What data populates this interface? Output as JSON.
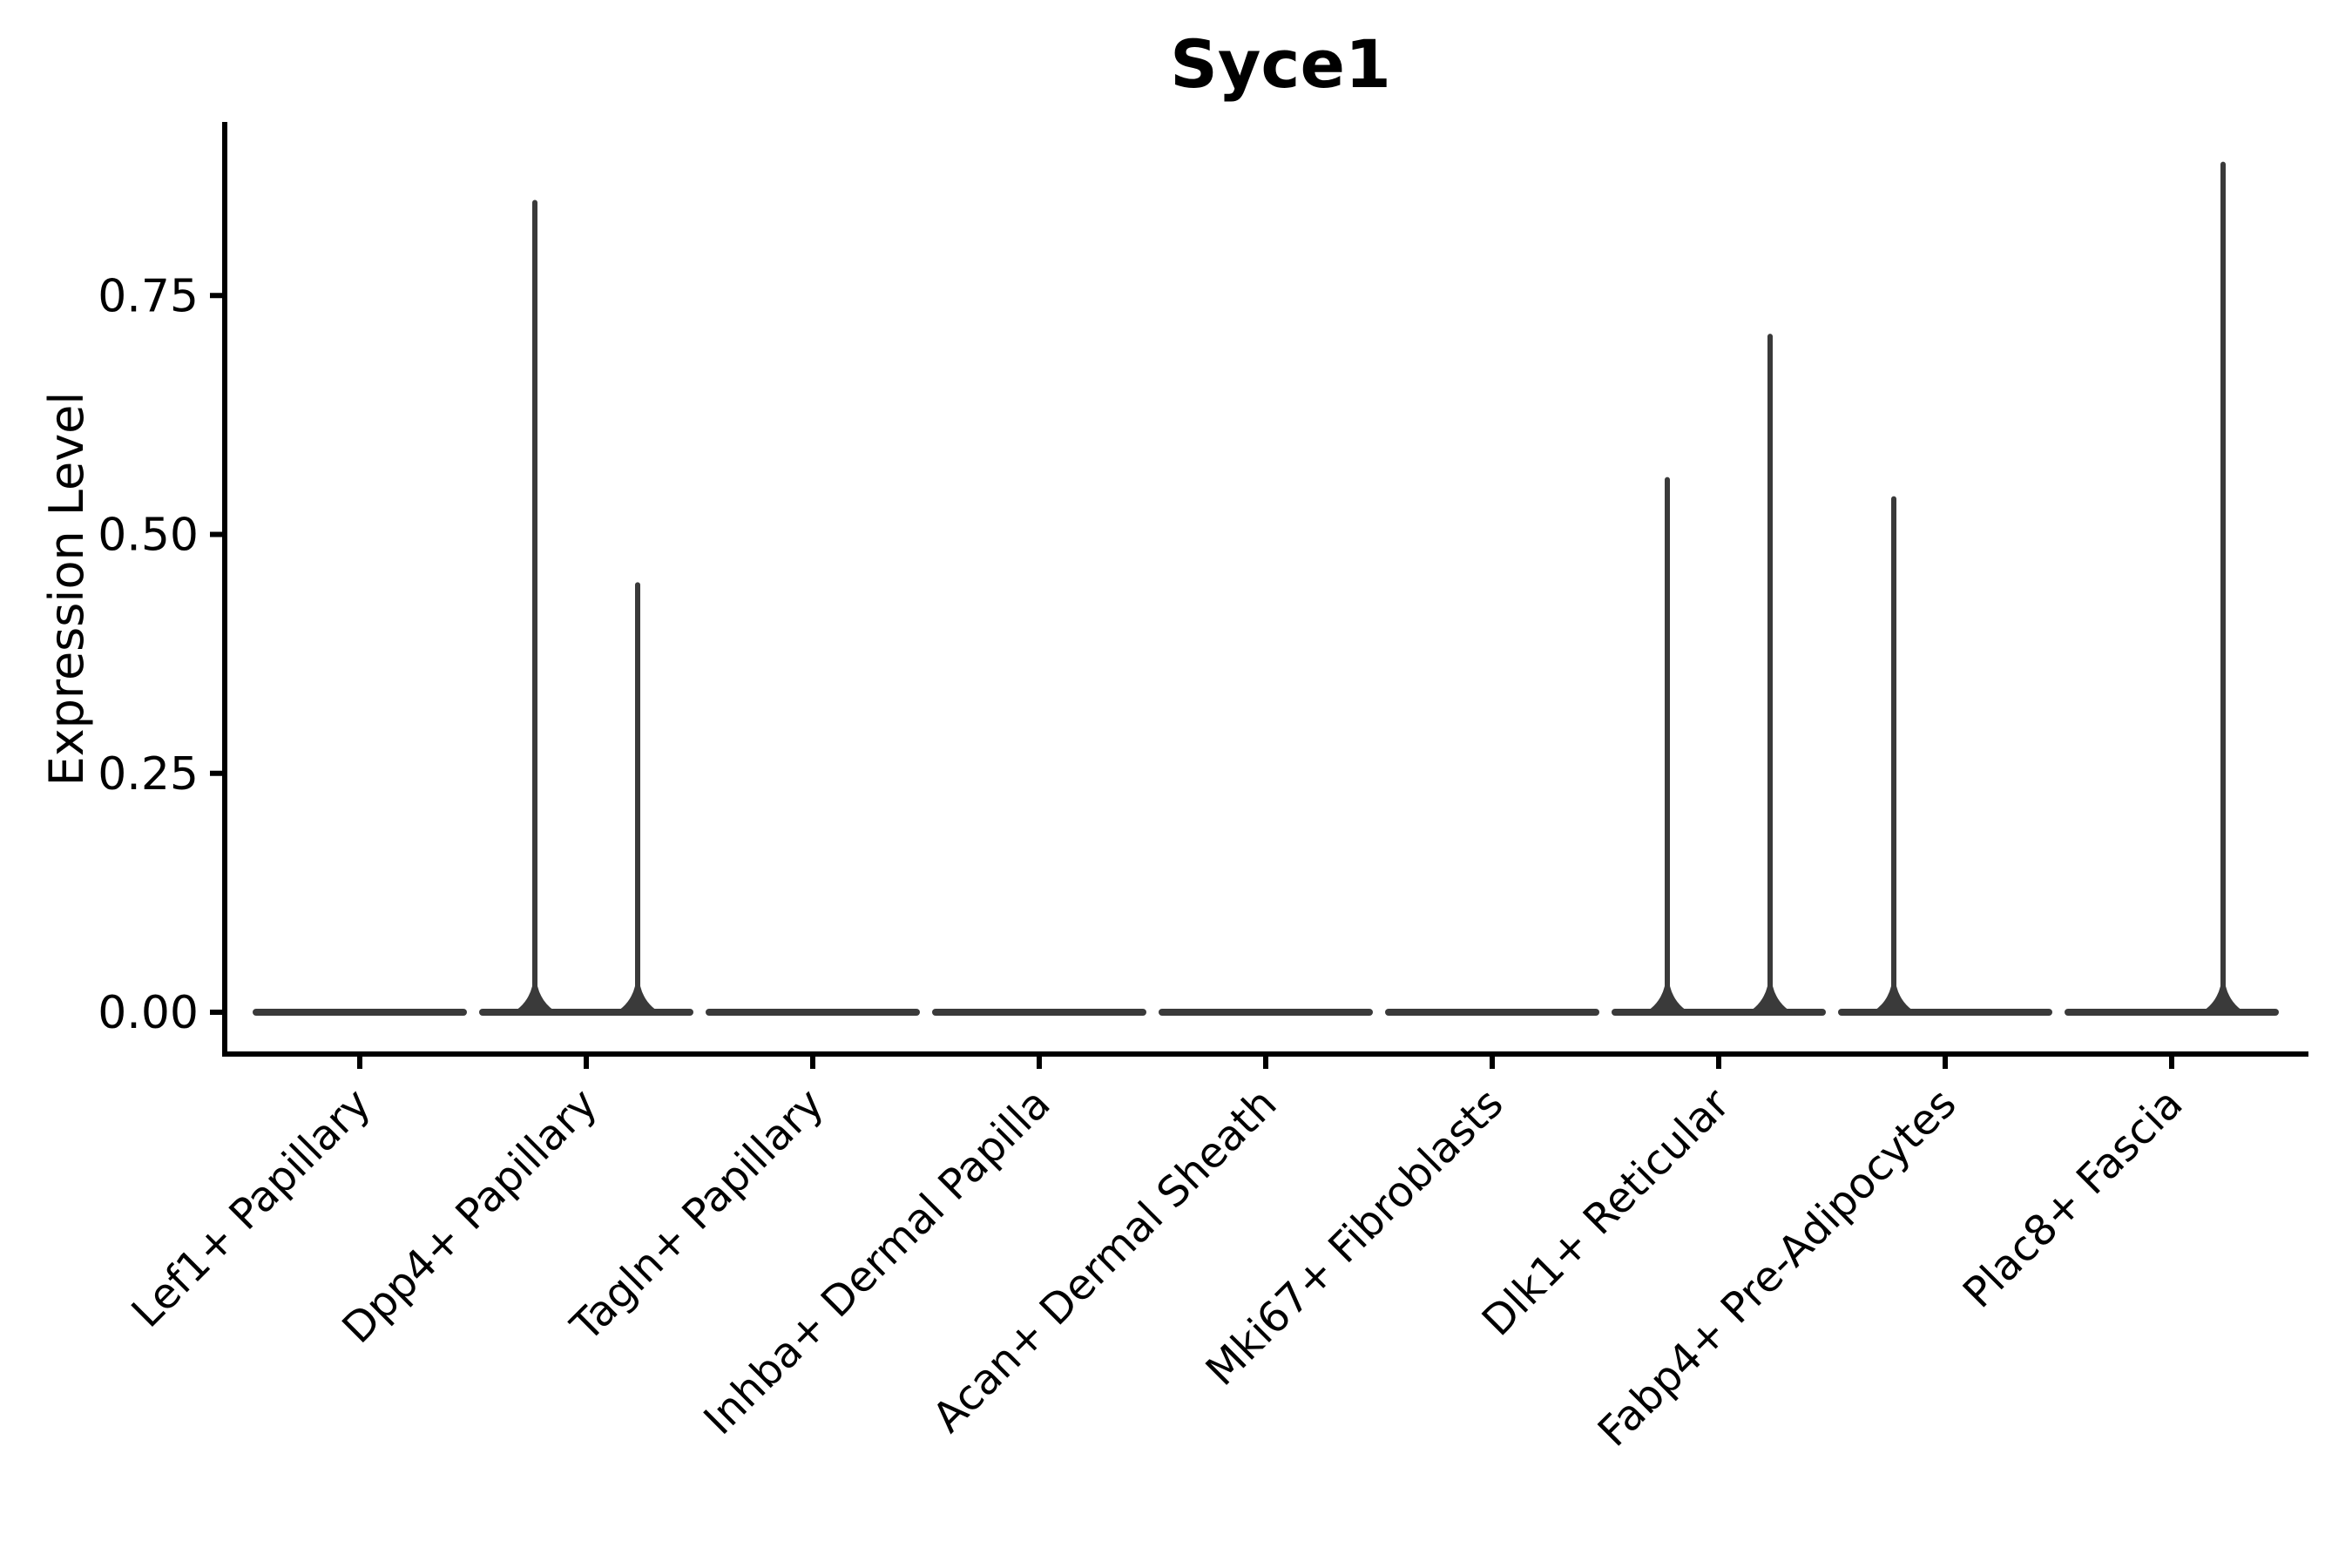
{
  "page": {
    "background": "#ffffff"
  },
  "chart_data": {
    "type": "violin",
    "title": "Syce1",
    "xlabel": "",
    "ylabel": "Expression Level",
    "grid": false,
    "legend": null,
    "y_axis": {
      "min": 0,
      "max": 0.93,
      "ticks": [
        {
          "value": 0.0,
          "label": "0.00"
        },
        {
          "value": 0.25,
          "label": "0.25"
        },
        {
          "value": 0.5,
          "label": "0.50"
        },
        {
          "value": 0.75,
          "label": "0.75"
        }
      ]
    },
    "baseline_value": 0,
    "categories": [
      {
        "label": "Lef1+ Papillary",
        "spikes": []
      },
      {
        "label": "Dpp4+ Papillary",
        "spikes": [
          {
            "group": "left",
            "max": 0.85
          },
          {
            "group": "right",
            "max": 0.45
          }
        ]
      },
      {
        "label": "Tagln+ Papillary",
        "spikes": []
      },
      {
        "label": "Inhba+ Dermal Papilla",
        "spikes": []
      },
      {
        "label": "Acan+ Dermal Sheath",
        "spikes": []
      },
      {
        "label": "Mki67+ Fibroblasts",
        "spikes": []
      },
      {
        "label": "Dlk1+ Reticular",
        "spikes": [
          {
            "group": "left",
            "max": 0.56
          },
          {
            "group": "right",
            "max": 0.71
          }
        ]
      },
      {
        "label": "Fabp4+ Pre-Adipocytes",
        "spikes": [
          {
            "group": "left",
            "max": 0.54
          }
        ]
      },
      {
        "label": "Plac8+ Fascia",
        "spikes": [
          {
            "group": "right",
            "max": 0.89
          }
        ]
      }
    ],
    "style": {
      "axis_color": "#000000",
      "text_color": "#000000",
      "violin_color": "#3a3a3a",
      "background": "#ffffff"
    }
  }
}
